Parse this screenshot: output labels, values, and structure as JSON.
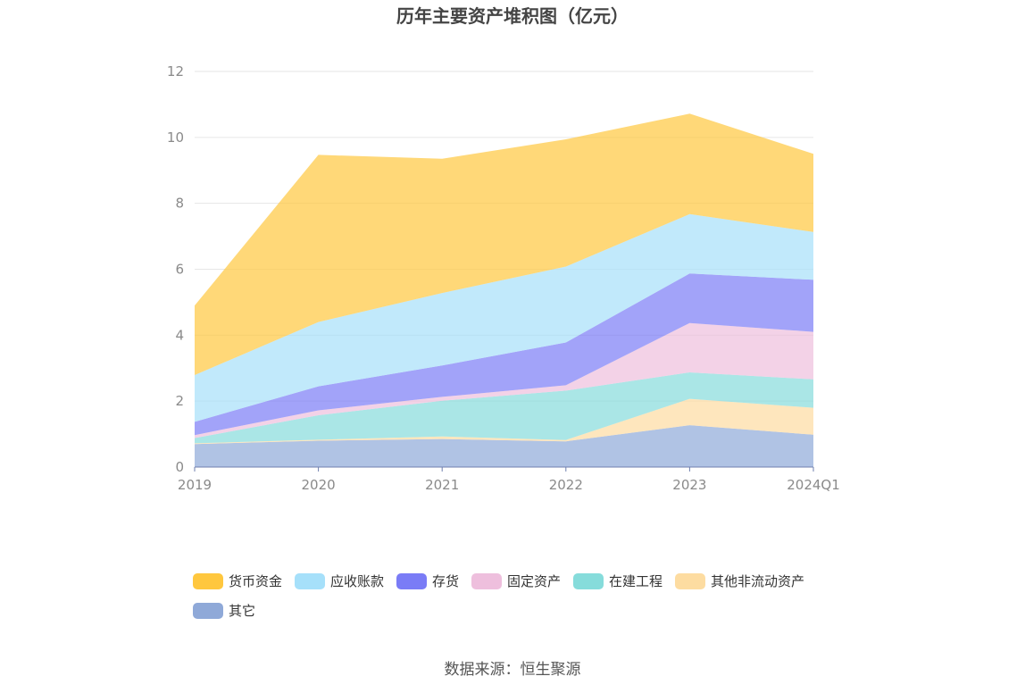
{
  "chart_data": {
    "type": "area",
    "stacked": true,
    "title": "历年主要资产堆积图（亿元）",
    "categories": [
      "2019",
      "2020",
      "2021",
      "2022",
      "2023",
      "2024Q1"
    ],
    "ylim": [
      0,
      12
    ],
    "yticks": [
      "0",
      "2",
      "4",
      "6",
      "8",
      "10",
      "12"
    ],
    "grid": true,
    "legend_position": "bottom",
    "series": [
      {
        "name": "其它",
        "color": "#8fa9d8",
        "values": [
          0.7,
          0.8,
          0.85,
          0.78,
          1.27,
          0.98
        ]
      },
      {
        "name": "其他非流动资产",
        "color": "#fddca1",
        "values": [
          0.02,
          0.03,
          0.08,
          0.04,
          0.8,
          0.82
        ]
      },
      {
        "name": "在建工程",
        "color": "#86dcdb",
        "values": [
          0.16,
          0.74,
          1.08,
          1.5,
          0.8,
          0.86
        ]
      },
      {
        "name": "固定资产",
        "color": "#eebfdd",
        "values": [
          0.09,
          0.15,
          0.12,
          0.16,
          1.5,
          1.44
        ]
      },
      {
        "name": "存货",
        "color": "#7a7cf6",
        "values": [
          0.4,
          0.73,
          0.95,
          1.3,
          1.5,
          1.58
        ]
      },
      {
        "name": "应收账款",
        "color": "#a6e0fa",
        "values": [
          1.42,
          1.95,
          2.2,
          2.3,
          1.8,
          1.45
        ]
      },
      {
        "name": "货币资金",
        "color": "#ffc73e",
        "values": [
          2.11,
          5.07,
          4.07,
          3.86,
          3.05,
          2.37
        ]
      }
    ],
    "legend_order": [
      "货币资金",
      "应收账款",
      "存货",
      "固定资产",
      "在建工程",
      "其他非流动资产",
      "其它"
    ]
  },
  "source": "数据来源：恒生聚源",
  "colors": {
    "grid": "#e6e6e6",
    "axis": "#6f7fae",
    "text": "#444444"
  }
}
